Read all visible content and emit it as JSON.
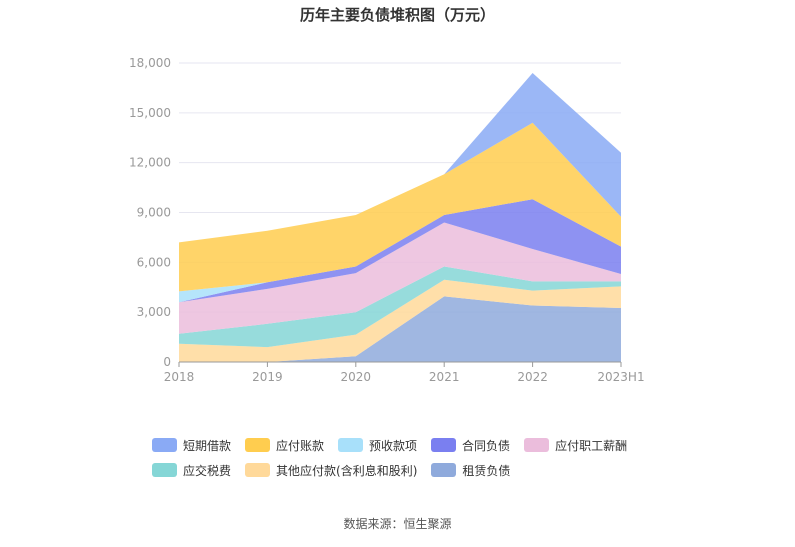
{
  "chart_data": {
    "type": "area",
    "stacked": true,
    "title": "历年主要负债堆积图（万元）",
    "categories": [
      "2018",
      "2019",
      "2020",
      "2021",
      "2022",
      "2023H1"
    ],
    "y_ticks": [
      "0",
      "3,000",
      "6,000",
      "9,000",
      "12,000",
      "15,000",
      "18,000"
    ],
    "ylim": [
      0,
      18000
    ],
    "grid": true,
    "legend_position": "bottom",
    "series": [
      {
        "name": "租赁负债",
        "color": "#8faadc",
        "values": [
          0,
          0,
          350,
          3950,
          3400,
          3250
        ]
      },
      {
        "name": "其他应付款(含利息和股利)",
        "color": "#ffd99a",
        "values": [
          1100,
          900,
          1300,
          1000,
          900,
          1300
        ]
      },
      {
        "name": "应交税费",
        "color": "#85d6d6",
        "values": [
          600,
          1400,
          1350,
          800,
          550,
          300
        ]
      },
      {
        "name": "应付职工薪酬",
        "color": "#ebbddc",
        "values": [
          1900,
          2100,
          2350,
          2650,
          1950,
          450
        ]
      },
      {
        "name": "合同负债",
        "color": "#7a7ff0",
        "values": [
          0,
          400,
          400,
          450,
          3000,
          1650
        ]
      },
      {
        "name": "预收款项",
        "color": "#a8e0fa",
        "values": [
          650,
          0,
          0,
          0,
          0,
          0
        ]
      },
      {
        "name": "应付账款",
        "color": "#ffcd4f",
        "values": [
          2950,
          3100,
          3100,
          2450,
          4600,
          1800
        ]
      },
      {
        "name": "短期借款",
        "color": "#8aaaf5",
        "values": [
          0,
          0,
          0,
          0,
          3000,
          3850
        ]
      }
    ]
  },
  "legend_rows": [
    [
      {
        "label": "短期借款",
        "color": "#8aaaf5"
      },
      {
        "label": "应付账款",
        "color": "#ffcd4f"
      },
      {
        "label": "预收款项",
        "color": "#a8e0fa"
      },
      {
        "label": "合同负债",
        "color": "#7a7ff0"
      },
      {
        "label": "应付职工薪酬",
        "color": "#ebbddc"
      }
    ],
    [
      {
        "label": "应交税费",
        "color": "#85d6d6"
      },
      {
        "label": "其他应付款(含利息和股利)",
        "color": "#ffd99a"
      },
      {
        "label": "租赁负债",
        "color": "#8faadc"
      }
    ]
  ],
  "source_text": "数据来源：恒生聚源"
}
